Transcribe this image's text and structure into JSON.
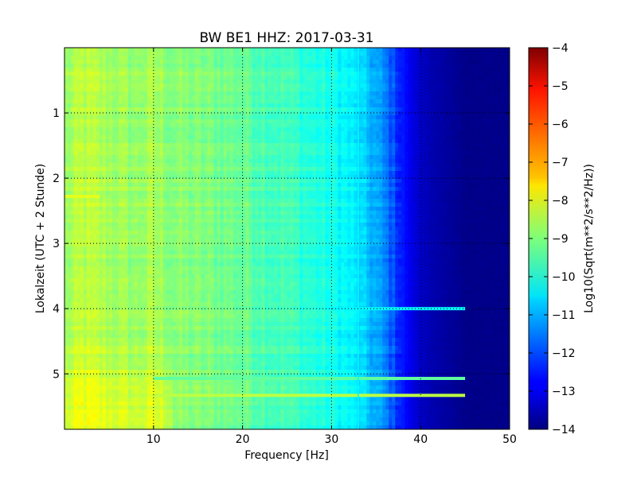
{
  "chart_data": {
    "type": "heatmap",
    "title": "BW BE1 HHZ: 2017-03-31",
    "xlabel": "Frequency [Hz]",
    "ylabel": "Lokalzeit (UTC + 2 Stunde)",
    "xlim": [
      0,
      50
    ],
    "ylim": [
      5.85,
      0
    ],
    "x_ticks": [
      "10",
      "20",
      "30",
      "40",
      "50"
    ],
    "x_tick_values": [
      10,
      20,
      30,
      40,
      50
    ],
    "y_ticks": [
      "1",
      "2",
      "3",
      "4",
      "5"
    ],
    "y_tick_values": [
      1,
      2,
      3,
      4,
      5
    ],
    "grid": true,
    "colormap": "jet",
    "colorbar": {
      "label": "Log10(Sqrt(m**2/s**2/Hz))",
      "range": [
        -14,
        -4
      ],
      "ticks": [
        "−4",
        "−5",
        "−6",
        "−7",
        "−8",
        "−9",
        "−10",
        "−11",
        "−12",
        "−13",
        "−14"
      ],
      "tick_values": [
        -4,
        -5,
        -6,
        -7,
        -8,
        -9,
        -10,
        -11,
        -12,
        -13,
        -14
      ]
    },
    "spectrum_profile": {
      "frequency_hz": [
        0,
        2,
        5,
        8,
        10,
        12,
        15,
        18,
        20,
        22,
        25,
        28,
        30,
        31,
        32,
        33,
        34,
        35,
        36,
        37,
        38,
        39,
        40,
        41,
        42,
        43,
        44,
        45,
        50
      ],
      "log10_amplitude": [
        -8.8,
        -8.4,
        -8.6,
        -8.8,
        -8.6,
        -8.9,
        -9.0,
        -9.1,
        -9.2,
        -9.4,
        -9.6,
        -9.9,
        -10.1,
        -10.2,
        -10.35,
        -10.6,
        -10.85,
        -11.1,
        -11.5,
        -12.0,
        -12.5,
        -13.0,
        -13.3,
        -13.5,
        -13.6,
        -13.7,
        -13.8,
        -13.9,
        -13.9
      ]
    },
    "notable_features": [
      {
        "type": "horizontal_line",
        "time": 5.07,
        "freq_range": [
          10,
          45
        ],
        "log10_amplitude": -9.3
      },
      {
        "type": "horizontal_line",
        "time": 5.33,
        "freq_range": [
          10,
          45
        ],
        "log10_amplitude": -8.4
      },
      {
        "type": "horizontal_line",
        "time": 4.0,
        "freq_range": [
          30,
          45
        ],
        "log10_amplitude": -10.3
      },
      {
        "type": "horizontal_line",
        "time": 2.28,
        "freq_range": [
          0,
          4
        ],
        "log10_amplitude": -8.0
      },
      {
        "type": "vertical_line",
        "frequency": 33,
        "time_range": [
          0,
          5.85
        ],
        "log10_amplitude": -10.3
      }
    ]
  }
}
